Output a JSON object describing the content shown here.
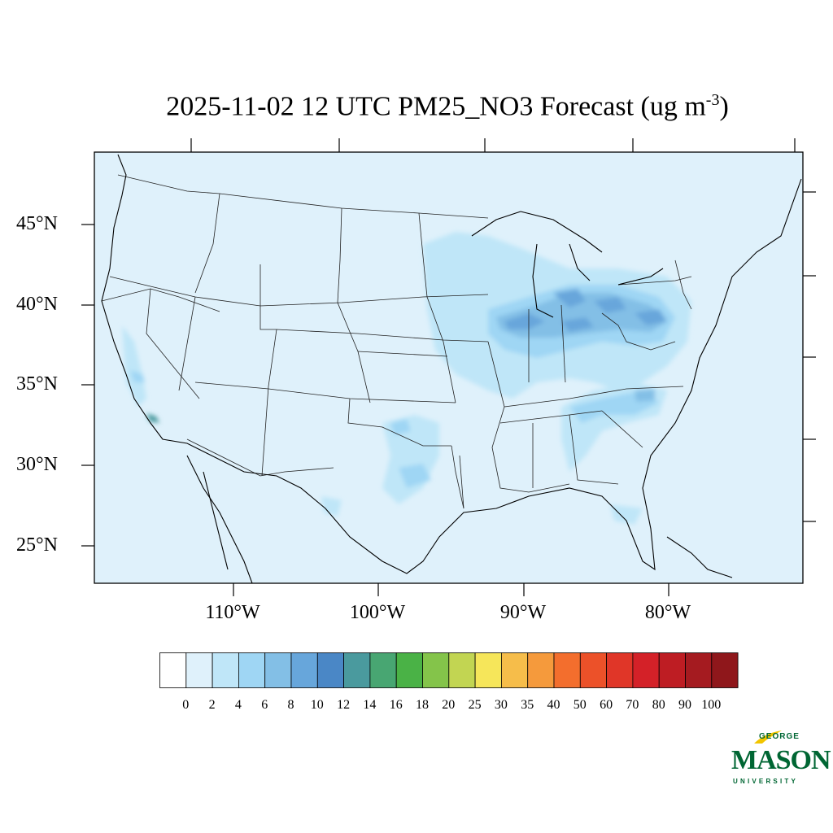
{
  "title": {
    "main": "2025-11-02 12 UTC PM25_NO3 Forecast (ug m",
    "exponent": "-3",
    "close": ")"
  },
  "lat_labels": [
    "45°N",
    "40°N",
    "35°N",
    "30°N",
    "25°N"
  ],
  "lon_labels": [
    "110°W",
    "100°W",
    "90°W",
    "80°W"
  ],
  "colorbar": {
    "colors": [
      "#ffffff",
      "#dff1fb",
      "#bfe6f8",
      "#9fd6f4",
      "#83bfe6",
      "#67a6db",
      "#4a87c6",
      "#4a9a9e",
      "#48a672",
      "#4ab246",
      "#84c44a",
      "#c2d552",
      "#f6e65a",
      "#f6bd4a",
      "#f59a3c",
      "#f36e2d",
      "#ec5129",
      "#e03628",
      "#d42128",
      "#be1d23",
      "#a51b20",
      "#8f171b"
    ],
    "labels": [
      "0",
      "2",
      "4",
      "6",
      "8",
      "10",
      "12",
      "14",
      "16",
      "18",
      "20",
      "25",
      "30",
      "35",
      "40",
      "50",
      "60",
      "70",
      "80",
      "90",
      "100"
    ]
  },
  "map": {
    "background_color": "#dff1fb",
    "level_2_4_color": "#bfe6f8",
    "level_4_6_color": "#9fd6f4",
    "level_6_8_color": "#83bfe6",
    "level_8_10_color": "#67a6db",
    "level_12_14_color": "#4a9a9e"
  },
  "logo": {
    "line1": "GEORGE",
    "line2": "MASON",
    "line3": "UNIVERSITY",
    "color": "#006633",
    "accent_color": "#f2c500"
  }
}
